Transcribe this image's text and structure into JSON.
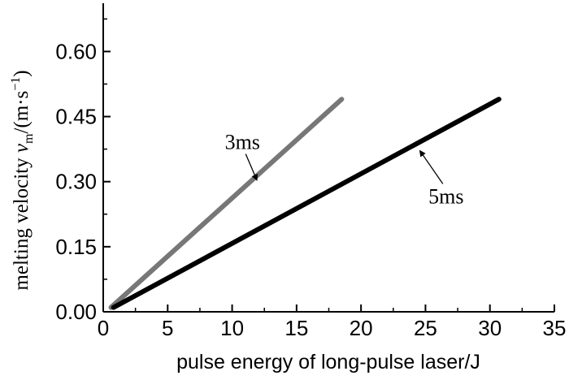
{
  "chart_data": {
    "type": "line",
    "xlabel": "pulse energy of long-pulse laser/J",
    "ylabel": {
      "text": "melting velocity",
      "symbol": "v",
      "subscript": "m",
      "unit_prefix": "/(m·s",
      "unit_exp": "−1",
      "unit_suffix": ")"
    },
    "xlim": [
      0,
      35
    ],
    "ylim": [
      0,
      0.7
    ],
    "x_ticks": [
      0,
      5,
      10,
      15,
      20,
      25,
      30,
      35
    ],
    "x_tick_labels": [
      "0",
      "5",
      "10",
      "15",
      "20",
      "25",
      "30",
      "35"
    ],
    "y_ticks": [
      0,
      0.15,
      0.3,
      0.45,
      0.6
    ],
    "y_tick_labels": [
      "0.00",
      "0.15",
      "0.30",
      "0.45",
      "0.60"
    ],
    "grid": false,
    "series": [
      {
        "name": "3ms",
        "color": "#777777",
        "points": [
          [
            0.6,
            0.01
          ],
          [
            18.5,
            0.49
          ]
        ],
        "annotation": {
          "text": "3ms",
          "text_at": [
            10.8,
            0.375
          ],
          "arrow_to": [
            11.9,
            0.305
          ]
        }
      },
      {
        "name": "5ms",
        "color": "#000000",
        "points": [
          [
            0.8,
            0.01
          ],
          [
            30.7,
            0.49
          ]
        ],
        "annotation": {
          "text": "5ms",
          "text_at": [
            26.6,
            0.25
          ],
          "arrow_to": [
            24.6,
            0.37
          ]
        }
      }
    ]
  }
}
